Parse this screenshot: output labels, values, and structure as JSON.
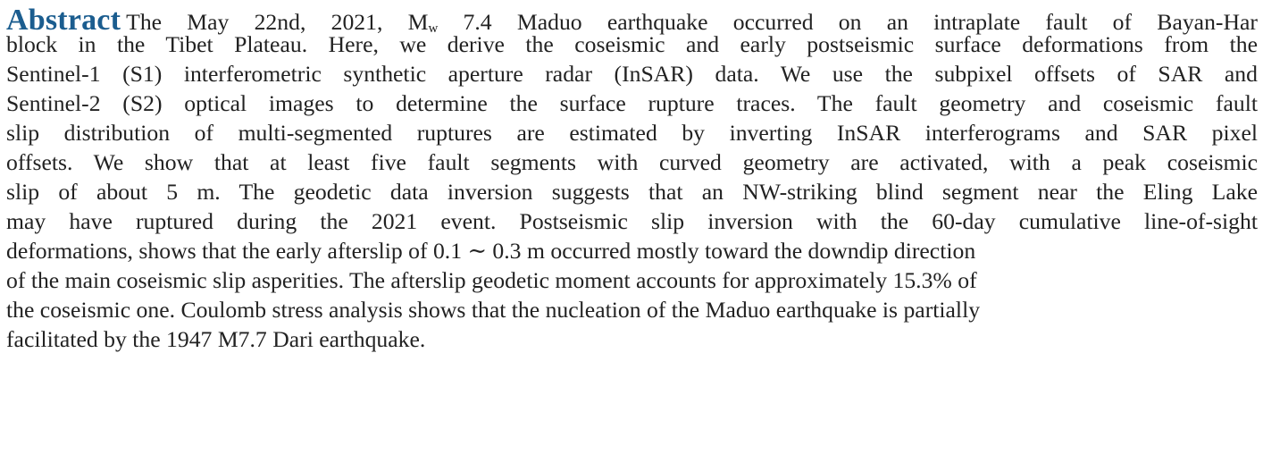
{
  "abstract": {
    "heading": "Abstract",
    "line1_pre": "The May 22nd, 2021, M",
    "line1_sub": "w",
    "line1_post": " 7.4 Maduo earthquake occurred on an intraplate fault of Bayan-Har",
    "lines": [
      "block in the Tibet Plateau. Here, we derive the coseismic and early postseismic surface deformations from the",
      "Sentinel-1 (S1) interferometric synthetic aperture radar (InSAR) data. We use the subpixel offsets of SAR and",
      "Sentinel-2 (S2) optical images to determine the surface rupture traces. The fault geometry and coseismic fault",
      "slip distribution of multi-segmented ruptures are estimated by inverting InSAR interferograms and SAR pixel",
      "offsets. We show that at least five fault segments with curved geometry are activated, with a peak coseismic",
      "slip of about 5 m. The geodetic data inversion suggests that an NW-striking blind segment near the Eling Lake",
      "may have ruptured during the 2021 event. Postseismic slip inversion with the 60-day cumulative line-of-sight",
      "deformations, shows that the early afterslip of 0.1 ∼ 0.3 m occurred mostly toward the downdip direction",
      "of the main coseismic slip asperities. The afterslip geodetic moment accounts for approximately 15.3% of",
      "the coseismic one. Coulomb stress analysis shows that the nucleation of the Maduo earthquake is partially",
      "facilitated by the 1947 M7.7 Dari earthquake."
    ]
  },
  "colors": {
    "heading": "#1b5d8f",
    "text": "#222222",
    "background": "#ffffff"
  }
}
